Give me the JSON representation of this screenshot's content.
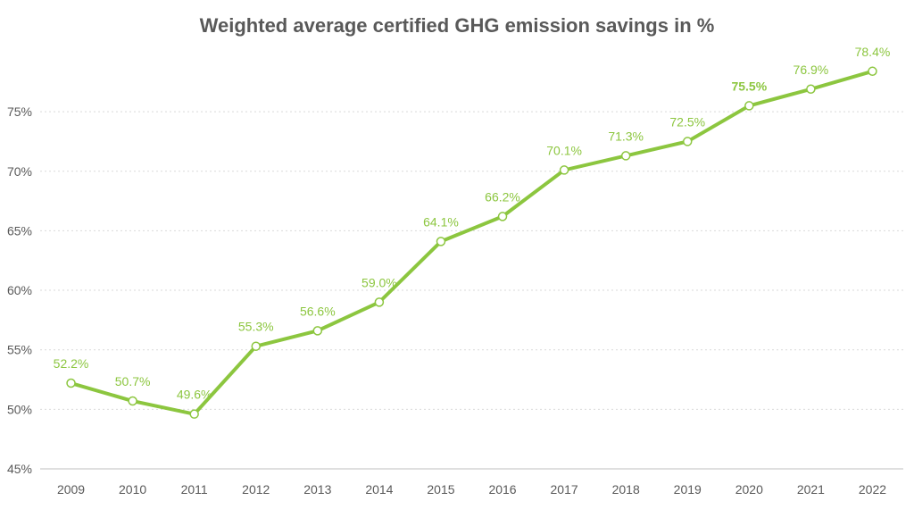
{
  "chart_data": {
    "type": "line",
    "title": "Weighted average certified GHG emission savings in %",
    "xlabel": "",
    "ylabel": "",
    "categories": [
      "2009",
      "2010",
      "2011",
      "2012",
      "2013",
      "2014",
      "2015",
      "2016",
      "2017",
      "2018",
      "2019",
      "2020",
      "2021",
      "2022"
    ],
    "series": [
      {
        "values": [
          52.2,
          50.7,
          49.6,
          55.3,
          56.6,
          59.0,
          64.1,
          66.2,
          70.1,
          71.3,
          72.5,
          75.5,
          76.9,
          78.4
        ]
      }
    ],
    "data_labels": [
      "52.2%",
      "50.7%",
      "49.6%",
      "55.3%",
      "56.6%",
      "59.0%",
      "64.1%",
      "66.2%",
      "70.1%",
      "71.3%",
      "72.5%",
      "75.5%",
      "76.9%",
      "78.4%"
    ],
    "ylim": [
      45,
      80
    ],
    "yticks": [
      45,
      50,
      55,
      60,
      65,
      70,
      75
    ],
    "ytick_labels": [
      "45%",
      "50%",
      "55%",
      "60%",
      "65%",
      "70%",
      "75%"
    ],
    "grid": true,
    "colors": {
      "line": "#8cc63f",
      "label": "#8cc63f",
      "grid": "#d9d9d9",
      "axis_text": "#595959"
    }
  }
}
